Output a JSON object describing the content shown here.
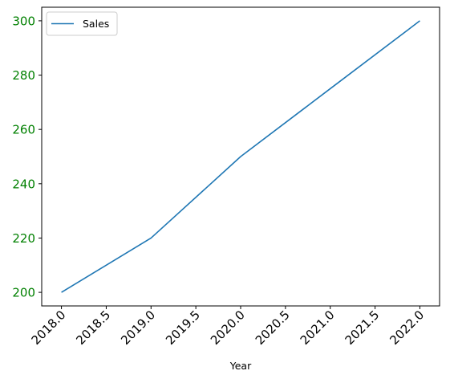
{
  "chart_data": {
    "type": "line",
    "title": "",
    "xlabel": "Year",
    "ylabel": "",
    "x": [
      2018,
      2019,
      2020,
      2021,
      2022
    ],
    "series": [
      {
        "name": "Sales",
        "values": [
          200,
          220,
          250,
          275,
          300
        ]
      }
    ],
    "xlim": [
      2017.78,
      2022.22
    ],
    "ylim": [
      195,
      305
    ],
    "xticks": [
      2018.0,
      2018.5,
      2019.0,
      2019.5,
      2020.0,
      2020.5,
      2021.0,
      2021.5,
      2022.0
    ],
    "xtick_labels": [
      "2018.0",
      "2018.5",
      "2019.0",
      "2019.5",
      "2020.0",
      "2020.5",
      "2021.0",
      "2021.5",
      "2022.0"
    ],
    "yticks": [
      200,
      220,
      240,
      260,
      280,
      300
    ],
    "ytick_labels": [
      "200",
      "220",
      "240",
      "260",
      "280",
      "300"
    ],
    "xtick_rotation": 45,
    "ytick_color": "#008000",
    "line_color": "#1f77b4",
    "grid": false,
    "legend_position": "upper-left"
  }
}
